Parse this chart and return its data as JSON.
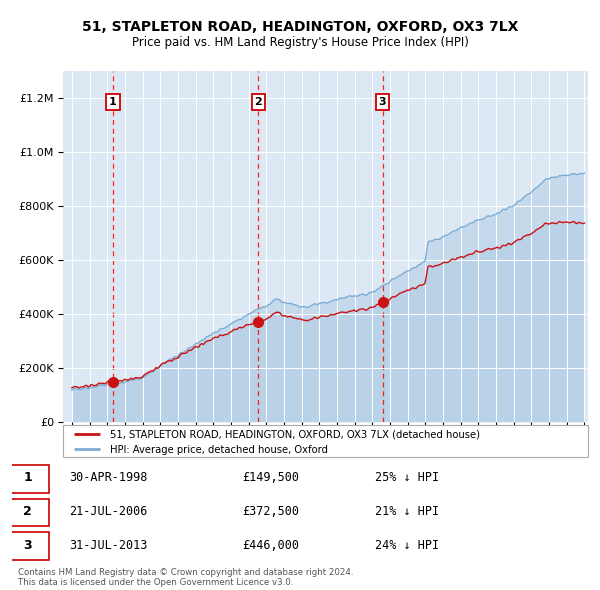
{
  "title": "51, STAPLETON ROAD, HEADINGTON, OXFORD, OX3 7LX",
  "subtitle": "Price paid vs. HM Land Registry's House Price Index (HPI)",
  "hpi_color": "#7dadd4",
  "sale_color": "#cc1111",
  "background_color": "#dce9f5",
  "purchases": [
    {
      "label": "1",
      "date_num": 1998.33,
      "price": 149500,
      "pct": "25%",
      "date_str": "30-APR-1998"
    },
    {
      "label": "2",
      "date_num": 2006.55,
      "price": 372500,
      "pct": "21%",
      "date_str": "21-JUL-2006"
    },
    {
      "label": "3",
      "date_num": 2013.58,
      "price": 446000,
      "pct": "24%",
      "date_str": "31-JUL-2013"
    }
  ],
  "legend_entry1": "51, STAPLETON ROAD, HEADINGTON, OXFORD, OX3 7LX (detached house)",
  "legend_entry2": "HPI: Average price, detached house, Oxford",
  "footer1": "Contains HM Land Registry data © Crown copyright and database right 2024.",
  "footer2": "This data is licensed under the Open Government Licence v3.0.",
  "ylim_max": 1300000,
  "xlim_start": 1995.5,
  "xlim_end": 2025.2
}
